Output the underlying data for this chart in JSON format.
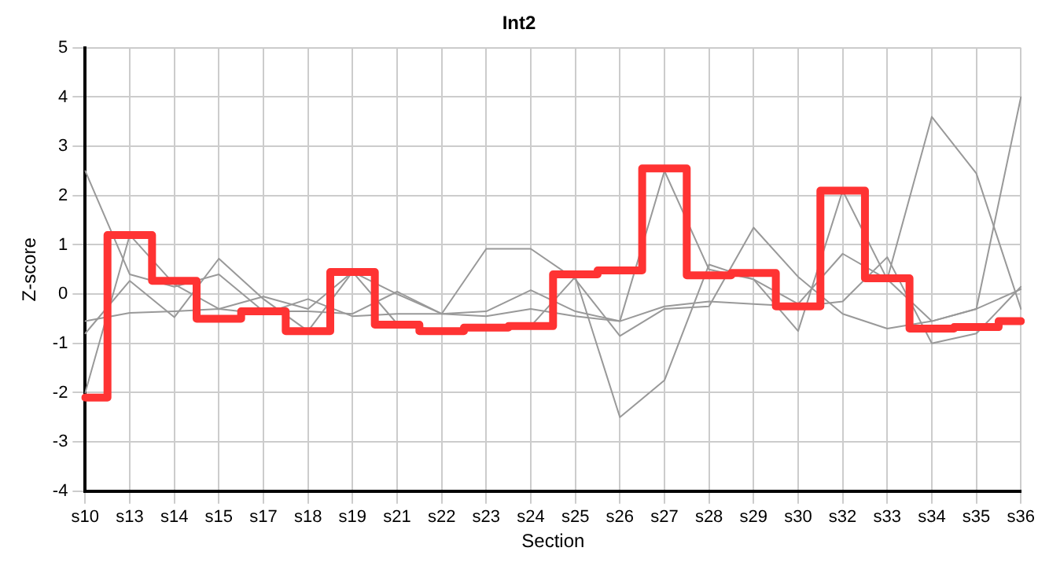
{
  "chart_data": {
    "type": "line",
    "title": "Int2",
    "xlabel": "Section",
    "ylabel": "Z-score",
    "categories": [
      "s10",
      "s13",
      "s14",
      "s15",
      "s17",
      "s18",
      "s19",
      "s21",
      "s22",
      "s23",
      "s24",
      "s25",
      "s26",
      "s27",
      "s28",
      "s29",
      "s30",
      "s32",
      "s33",
      "s34",
      "s35",
      "s36"
    ],
    "series": [
      {
        "color": "#999999",
        "values": [
          2.5,
          0.4,
          0.15,
          0.4,
          -0.35,
          -0.35,
          -0.4,
          0.05,
          -0.4,
          0.92,
          0.92,
          0.3,
          -0.85,
          -0.3,
          -0.25,
          1.35,
          0.35,
          -0.4,
          -0.7,
          -0.55,
          -0.3,
          4.0
        ]
      },
      {
        "color": "#999999",
        "values": [
          -2.0,
          1.2,
          0.2,
          -0.3,
          -0.05,
          -0.3,
          0.45,
          -0.6,
          -0.75,
          -0.65,
          -0.65,
          0.35,
          -2.5,
          -1.75,
          0.6,
          0.3,
          -0.75,
          2.1,
          0.3,
          3.6,
          2.45,
          -0.3
        ]
      },
      {
        "color": "#999999",
        "values": [
          -0.8,
          0.27,
          -0.47,
          0.72,
          -0.1,
          -0.75,
          0.45,
          0.0,
          -0.4,
          -0.35,
          0.08,
          -0.35,
          -0.55,
          2.5,
          0.5,
          0.3,
          -0.2,
          0.82,
          0.3,
          -0.55,
          -0.3,
          0.1
        ]
      },
      {
        "color": "#999999",
        "values": [
          -0.55,
          -0.38,
          -0.35,
          -0.3,
          -0.4,
          -0.1,
          -0.45,
          -0.4,
          -0.4,
          -0.45,
          -0.3,
          -0.45,
          -0.55,
          -0.25,
          -0.15,
          -0.2,
          -0.25,
          -0.15,
          0.75,
          -1.0,
          -0.8,
          0.15
        ]
      },
      {
        "type": "step",
        "color": "#ff3333",
        "values": [
          -2.1,
          1.2,
          0.27,
          -0.5,
          -0.35,
          -0.75,
          0.45,
          -0.62,
          -0.75,
          -0.68,
          -0.65,
          0.4,
          0.48,
          2.55,
          0.38,
          0.43,
          -0.25,
          2.1,
          0.32,
          -0.7,
          -0.67,
          -0.55
        ]
      }
    ],
    "ylim": [
      -4,
      5
    ],
    "yticks": [
      -4,
      -3,
      -2,
      -1,
      0,
      1,
      2,
      3,
      4,
      5
    ],
    "grid": true,
    "legend": false,
    "marker": "none"
  }
}
